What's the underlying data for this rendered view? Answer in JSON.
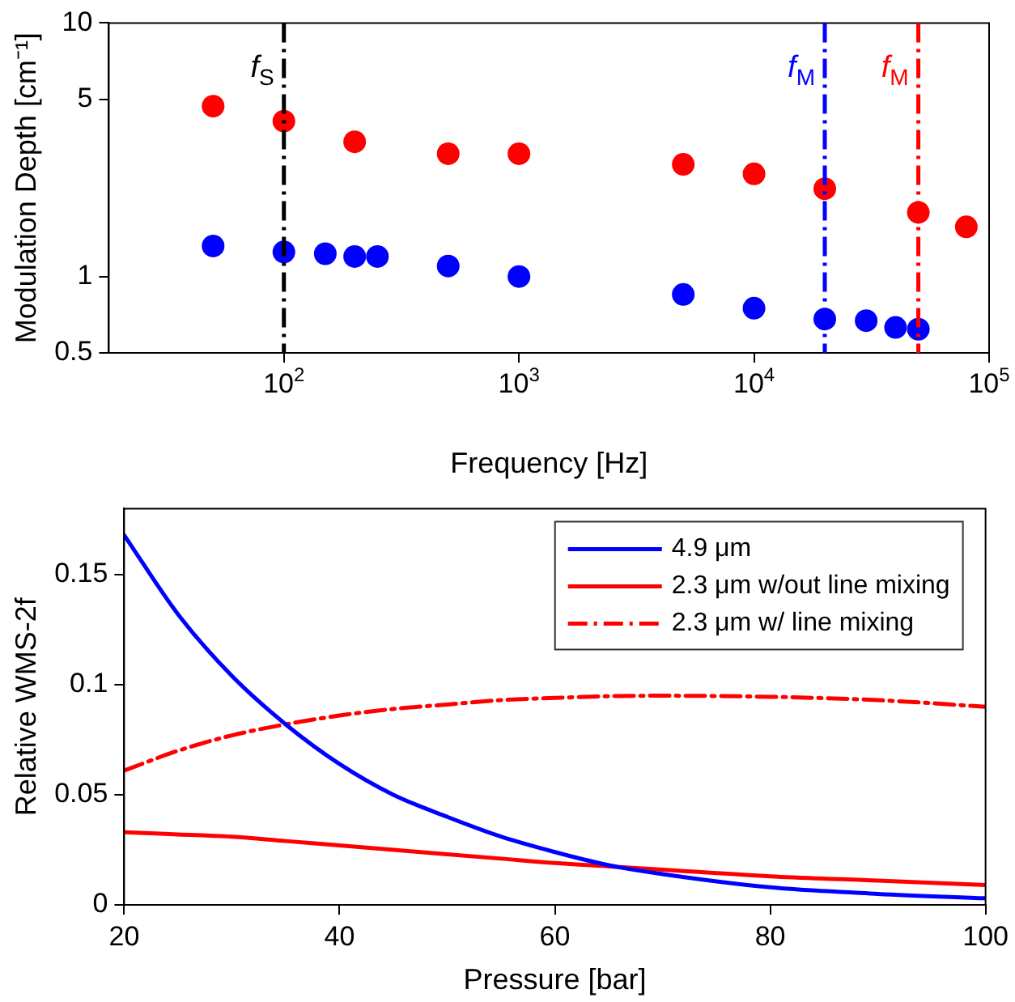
{
  "chart_data": [
    {
      "type": "scatter",
      "xlabel": "Frequency [Hz]",
      "ylabel": "Modulation Depth [cm⁻¹]",
      "log": "xy",
      "marker": "circle",
      "grid": false,
      "legend": false,
      "xlim": [
        18,
        100000
      ],
      "xticks": [
        {
          "value": 100,
          "label": "10$^{2}$"
        },
        {
          "value": 1000,
          "label": "10$^{3}$"
        },
        {
          "value": 10000,
          "label": "10$^{4}$"
        },
        {
          "value": 100000,
          "label": "10$^{5}$"
        }
      ],
      "ylim": [
        0.5,
        10
      ],
      "yticks": [
        0.5,
        1,
        5,
        10
      ],
      "series": [
        {
          "color": "#ff0000",
          "x": [
            50,
            100,
            200,
            500,
            1000,
            5000,
            10000,
            20000,
            50000,
            80000
          ],
          "values": [
            4.7,
            4.1,
            3.4,
            3.05,
            3.05,
            2.77,
            2.54,
            2.22,
            1.79,
            1.57
          ]
        },
        {
          "color": "#0000ff",
          "x": [
            50,
            100,
            150,
            200,
            250,
            500,
            1000,
            5000,
            10000,
            20000,
            30000,
            40000,
            50000
          ],
          "values": [
            1.32,
            1.25,
            1.23,
            1.2,
            1.2,
            1.1,
            1.0,
            0.85,
            0.75,
            0.68,
            0.67,
            0.63,
            0.62
          ]
        }
      ],
      "ref_lines": [
        {
          "axis": "x",
          "value": 100,
          "label": "f$_{S}$",
          "color": "#000000",
          "line_style": "dashed"
        },
        {
          "axis": "x",
          "value": 20000,
          "label": "f$_{M}$",
          "color": "#0000ff",
          "line_style": "dashed"
        },
        {
          "axis": "x",
          "value": 50000,
          "label": "f$_{M}$",
          "color": "#ff0000",
          "line_style": "dashed"
        }
      ]
    },
    {
      "type": "line",
      "xlabel": "Pressure [bar]",
      "ylabel": "Relative WMS-2f",
      "grid": false,
      "legend": "top right",
      "marker": "none",
      "xlim": [
        20,
        100
      ],
      "xticks": [
        20,
        40,
        60,
        80,
        100
      ],
      "ylim": [
        0,
        0.18
      ],
      "yticks": [
        0,
        0.05,
        0.1,
        0.15
      ],
      "x": [
        20,
        25,
        30,
        35,
        40,
        45,
        50,
        55,
        60,
        65,
        70,
        80,
        90,
        100
      ],
      "series": [
        {
          "name": "4.9 μm",
          "color": "#0000ff",
          "line_style": "solid",
          "values": [
            0.168,
            0.132,
            0.104,
            0.082,
            0.064,
            0.05,
            0.04,
            0.031,
            0.024,
            0.018,
            0.014,
            0.008,
            0.005,
            0.003
          ]
        },
        {
          "name": "2.3 μm w/out line mixing",
          "color": "#ff0000",
          "line_style": "solid",
          "values": [
            0.033,
            0.032,
            0.031,
            0.029,
            0.027,
            0.025,
            0.023,
            0.021,
            0.019,
            0.0175,
            0.016,
            0.013,
            0.011,
            0.009
          ]
        },
        {
          "name": "2.3 μm w/ line mixing",
          "color": "#ff0000",
          "line_style": "dashed",
          "values": [
            0.061,
            0.07,
            0.077,
            0.082,
            0.086,
            0.089,
            0.091,
            0.093,
            0.094,
            0.0948,
            0.095,
            0.0945,
            0.093,
            0.09
          ]
        }
      ]
    }
  ]
}
